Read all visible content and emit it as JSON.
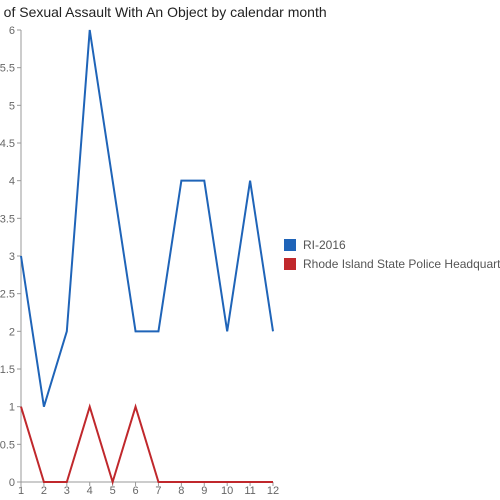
{
  "chart_data": {
    "type": "line",
    "title": "Offenses of Sexual Assault With An Object by calendar month",
    "x": [
      1,
      2,
      3,
      4,
      5,
      6,
      7,
      8,
      9,
      10,
      11,
      12
    ],
    "xlim": [
      1,
      12
    ],
    "ylim": [
      0,
      6
    ],
    "y_ticks": [
      "0",
      "0.5",
      "1",
      "1.5",
      "2",
      "2.5",
      "3",
      "3.5",
      "4",
      "4.5",
      "5",
      "5.5",
      "6"
    ],
    "grid": false,
    "legend": "right",
    "series": [
      {
        "name": "RI-2016",
        "color": "#1f64b8",
        "values": [
          3,
          1,
          2,
          6,
          4,
          2,
          2,
          4,
          4,
          2,
          4,
          2
        ]
      },
      {
        "name": "Rhode Island State Police Headquarters",
        "color": "#c0282c",
        "values": [
          1,
          0,
          0,
          1,
          0,
          1,
          0,
          0,
          0,
          0,
          0,
          0
        ]
      }
    ]
  }
}
